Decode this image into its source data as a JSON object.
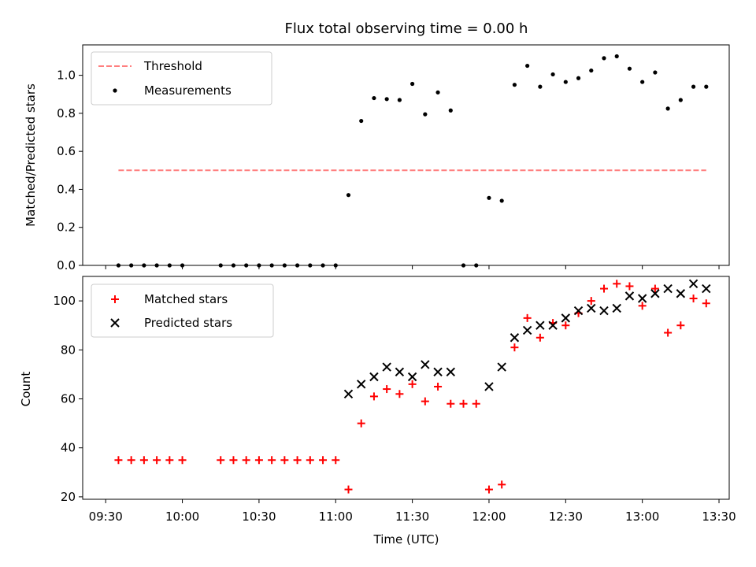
{
  "chart_data": [
    {
      "type": "scatter",
      "title": "Flux total observing time = 0.00 h",
      "xlabel": "",
      "ylabel": "Matched/Predicted stars",
      "ylim": [
        0,
        1.16
      ],
      "yticks": [
        "0.0",
        "0.2",
        "0.4",
        "0.6",
        "0.8",
        "1.0"
      ],
      "x_time_range": [
        "09:21",
        "13:34"
      ],
      "legend": {
        "placement": "top-left",
        "entries": [
          "Threshold",
          "Measurements"
        ]
      },
      "threshold": {
        "name": "Threshold",
        "value": 0.5,
        "x_start": "09:35",
        "x_end": "13:25",
        "color": "#ff7f7f"
      },
      "series": [
        {
          "name": "Measurements",
          "marker": "dot",
          "color": "#000000",
          "points": [
            [
              "09:35",
              0
            ],
            [
              "09:40",
              0
            ],
            [
              "09:45",
              0
            ],
            [
              "09:50",
              0
            ],
            [
              "09:55",
              0
            ],
            [
              "10:00",
              0
            ],
            [
              "10:15",
              0
            ],
            [
              "10:20",
              0
            ],
            [
              "10:25",
              0
            ],
            [
              "10:30",
              0
            ],
            [
              "10:35",
              0
            ],
            [
              "10:40",
              0
            ],
            [
              "10:45",
              0
            ],
            [
              "10:50",
              0
            ],
            [
              "10:55",
              0
            ],
            [
              "11:00",
              0
            ],
            [
              "11:05",
              0.37
            ],
            [
              "11:10",
              0.76
            ],
            [
              "11:15",
              0.88
            ],
            [
              "11:20",
              0.875
            ],
            [
              "11:25",
              0.87
            ],
            [
              "11:30",
              0.955
            ],
            [
              "11:35",
              0.795
            ],
            [
              "11:40",
              0.91
            ],
            [
              "11:45",
              0.815
            ],
            [
              "11:50",
              0
            ],
            [
              "11:55",
              0
            ],
            [
              "12:00",
              0.355
            ],
            [
              "12:05",
              0.34
            ],
            [
              "12:10",
              0.95
            ],
            [
              "12:15",
              1.05
            ],
            [
              "12:20",
              0.94
            ],
            [
              "12:25",
              1.005
            ],
            [
              "12:30",
              0.965
            ],
            [
              "12:35",
              0.985
            ],
            [
              "12:40",
              1.025
            ],
            [
              "12:45",
              1.09
            ],
            [
              "12:50",
              1.1
            ],
            [
              "12:55",
              1.035
            ],
            [
              "13:00",
              0.965
            ],
            [
              "13:05",
              1.015
            ],
            [
              "13:10",
              0.825
            ],
            [
              "13:15",
              0.87
            ],
            [
              "13:20",
              0.94
            ],
            [
              "13:25",
              0.94
            ]
          ]
        }
      ]
    },
    {
      "type": "scatter",
      "title": "",
      "xlabel": "Time (UTC)",
      "ylabel": "Count",
      "ylim": [
        19,
        110
      ],
      "yticks": [
        "20",
        "40",
        "60",
        "80",
        "100"
      ],
      "xticks": [
        "09:30",
        "10:00",
        "10:30",
        "11:00",
        "11:30",
        "12:00",
        "12:30",
        "13:00",
        "13:30"
      ],
      "x_time_range": [
        "09:21",
        "13:34"
      ],
      "legend": {
        "placement": "top-left",
        "entries": [
          "Matched stars",
          "Predicted stars"
        ]
      },
      "series": [
        {
          "name": "Matched stars",
          "marker": "plus",
          "color": "#ff0000",
          "points": [
            [
              "09:35",
              35
            ],
            [
              "09:40",
              35
            ],
            [
              "09:45",
              35
            ],
            [
              "09:50",
              35
            ],
            [
              "09:55",
              35
            ],
            [
              "10:00",
              35
            ],
            [
              "10:15",
              35
            ],
            [
              "10:20",
              35
            ],
            [
              "10:25",
              35
            ],
            [
              "10:30",
              35
            ],
            [
              "10:35",
              35
            ],
            [
              "10:40",
              35
            ],
            [
              "10:45",
              35
            ],
            [
              "10:50",
              35
            ],
            [
              "10:55",
              35
            ],
            [
              "11:00",
              35
            ],
            [
              "11:05",
              23
            ],
            [
              "11:10",
              50
            ],
            [
              "11:15",
              61
            ],
            [
              "11:20",
              64
            ],
            [
              "11:25",
              62
            ],
            [
              "11:30",
              66
            ],
            [
              "11:35",
              59
            ],
            [
              "11:40",
              65
            ],
            [
              "11:45",
              58
            ],
            [
              "11:50",
              58
            ],
            [
              "11:55",
              58
            ],
            [
              "12:00",
              23
            ],
            [
              "12:05",
              25
            ],
            [
              "12:10",
              81
            ],
            [
              "12:15",
              93
            ],
            [
              "12:20",
              85
            ],
            [
              "12:25",
              91
            ],
            [
              "12:30",
              90
            ],
            [
              "12:35",
              95
            ],
            [
              "12:40",
              100
            ],
            [
              "12:45",
              105
            ],
            [
              "12:50",
              107
            ],
            [
              "12:55",
              106
            ],
            [
              "13:00",
              98
            ],
            [
              "13:05",
              105
            ],
            [
              "13:10",
              87
            ],
            [
              "13:15",
              90
            ],
            [
              "13:20",
              101
            ],
            [
              "13:25",
              99
            ]
          ]
        },
        {
          "name": "Predicted stars",
          "marker": "x",
          "color": "#000000",
          "points": [
            [
              "11:05",
              62
            ],
            [
              "11:10",
              66
            ],
            [
              "11:15",
              69
            ],
            [
              "11:20",
              73
            ],
            [
              "11:25",
              71
            ],
            [
              "11:30",
              69
            ],
            [
              "11:35",
              74
            ],
            [
              "11:40",
              71
            ],
            [
              "11:45",
              71
            ],
            [
              "12:00",
              65
            ],
            [
              "12:05",
              73
            ],
            [
              "12:10",
              85
            ],
            [
              "12:15",
              88
            ],
            [
              "12:20",
              90
            ],
            [
              "12:25",
              90
            ],
            [
              "12:30",
              93
            ],
            [
              "12:35",
              96
            ],
            [
              "12:40",
              97
            ],
            [
              "12:45",
              96
            ],
            [
              "12:50",
              97
            ],
            [
              "12:55",
              102
            ],
            [
              "13:00",
              101
            ],
            [
              "13:05",
              103
            ],
            [
              "13:10",
              105
            ],
            [
              "13:15",
              103
            ],
            [
              "13:20",
              107
            ],
            [
              "13:25",
              105
            ]
          ]
        }
      ]
    }
  ]
}
